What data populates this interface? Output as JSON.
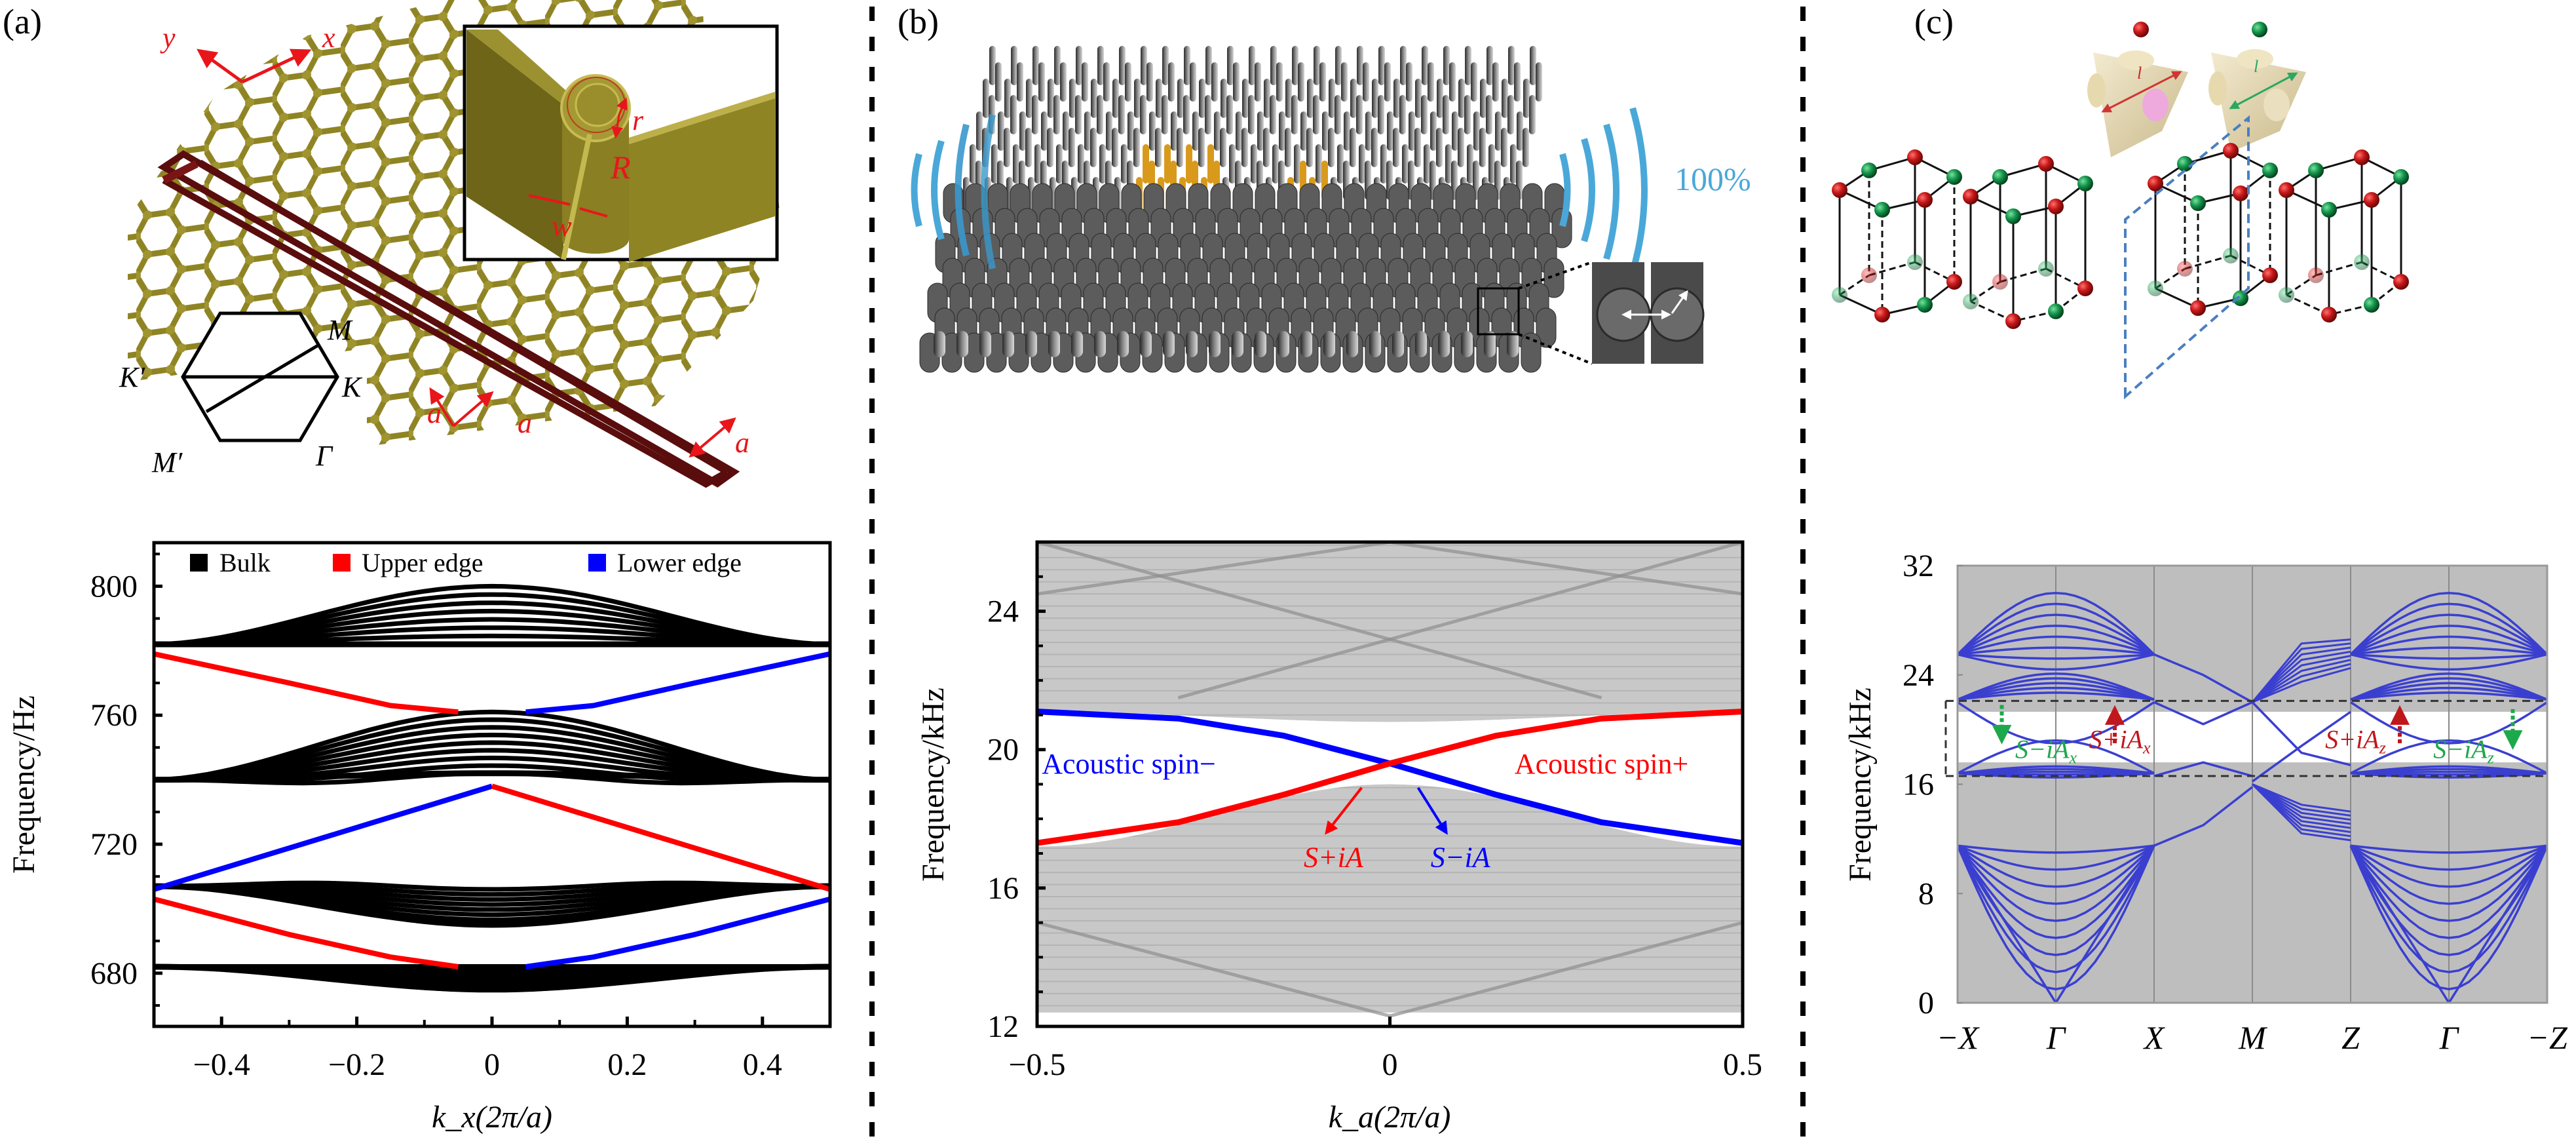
{
  "figure": {
    "panels": [
      {
        "id": "a",
        "label": "(a)",
        "schematic": {
          "axis_labels": {
            "y": "y",
            "x": "x"
          },
          "inset_labels": {
            "r": "r",
            "R": "R",
            "w": "w"
          },
          "lattice_labels": [
            "a",
            "a",
            "a"
          ],
          "brillouin_zone_labels": {
            "M": "M",
            "K_prime": "K′",
            "K": "K",
            "M_prime": "M′",
            "Gamma": "Γ"
          },
          "colors": {
            "lattice": "#8f8424",
            "supercell": "#5a0d0d",
            "annotation": "#e8161b"
          }
        }
      },
      {
        "id": "b",
        "label": "(b)",
        "schematic": {
          "transmission_label": "100%",
          "colors": {
            "rods": "#5a5a5a",
            "highlight_rods": "#d99a1c",
            "wave": "#4aa8d8"
          }
        }
      },
      {
        "id": "c",
        "label": "(c)",
        "schematic": {
          "unit_labels": {
            "red": "l_r",
            "green": "l_g"
          },
          "colors": {
            "red_atom": "#b3141a",
            "green_atom": "#13914a",
            "plane": "#4a7fc0",
            "block": "#e8dcae"
          }
        }
      }
    ]
  },
  "chart_data": [
    {
      "type": "line",
      "panel": "a",
      "title": "",
      "xlabel": "k_x(2π/a)",
      "ylabel": "Frequency/Hz",
      "xlim": [
        -0.5,
        0.5
      ],
      "ylim": [
        663.5,
        813.5
      ],
      "xticks": [
        -0.4,
        -0.2,
        0,
        0.2,
        0.4
      ],
      "xtick_labels": [
        "−0.4",
        "−0.2",
        "0",
        "0.2",
        "0.4"
      ],
      "yticks": [
        680,
        720,
        760,
        800
      ],
      "ytick_labels": [
        "680",
        "720",
        "760",
        "800"
      ],
      "legend": {
        "placement": "top",
        "entries": [
          {
            "name": "Bulk",
            "color": "#000000"
          },
          {
            "name": "Upper edge",
            "color": "#ff0000"
          },
          {
            "name": "Lower edge",
            "color": "#0000ff"
          }
        ]
      },
      "bulk_bands": [
        {
          "edge_k": 0.5,
          "edge_f": 782,
          "center_f_low": 782,
          "center_f_high": 800,
          "lines": 8
        },
        {
          "edge_k": 0.5,
          "edge_f": 740,
          "center_f_low": 742,
          "center_f_high": 761,
          "lines": 9,
          "dip_f": 736
        },
        {
          "edge_k": 0.5,
          "edge_f": 707,
          "center_f_low": 695,
          "center_f_high": 706,
          "lines": 8,
          "bump_f": 710
        },
        {
          "edge_k": 0.5,
          "edge_f": 682,
          "center_f_low": 675,
          "center_f_high": 682,
          "lines": 6
        }
      ],
      "series": [
        {
          "name": "Upper edge",
          "color": "#ff0000",
          "points": [
            [
              -0.5,
              779
            ],
            [
              -0.3,
              770
            ],
            [
              -0.15,
              763
            ],
            [
              -0.05,
              761
            ]
          ]
        },
        {
          "name": "Lower edge",
          "color": "#0000ff",
          "points": [
            [
              0.05,
              761
            ],
            [
              0.15,
              763
            ],
            [
              0.3,
              770
            ],
            [
              0.5,
              779
            ]
          ]
        },
        {
          "name": "Lower edge",
          "color": "#0000ff",
          "points": [
            [
              -0.5,
              706
            ],
            [
              -0.25,
              722
            ],
            [
              0,
              738
            ]
          ]
        },
        {
          "name": "Upper edge",
          "color": "#ff0000",
          "points": [
            [
              0,
              738
            ],
            [
              0.25,
              722
            ],
            [
              0.5,
              706
            ]
          ]
        },
        {
          "name": "Upper edge",
          "color": "#ff0000",
          "points": [
            [
              -0.5,
              703
            ],
            [
              -0.3,
              692
            ],
            [
              -0.15,
              685
            ],
            [
              -0.05,
              682
            ]
          ]
        },
        {
          "name": "Lower edge",
          "color": "#0000ff",
          "points": [
            [
              0.05,
              682
            ],
            [
              0.15,
              685
            ],
            [
              0.3,
              692
            ],
            [
              0.5,
              703
            ]
          ]
        }
      ]
    },
    {
      "type": "line",
      "panel": "b",
      "title": "",
      "xlabel": "k_a(2π/a)",
      "ylabel": "Frequency/kHz",
      "xlim": [
        -0.5,
        0.5
      ],
      "ylim": [
        12,
        26
      ],
      "xticks": [
        -0.5,
        0,
        0.5
      ],
      "xtick_labels": [
        "−0.5",
        "0",
        "0.5"
      ],
      "yticks": [
        12,
        16,
        20,
        24
      ],
      "ytick_labels": [
        "12",
        "16",
        "20",
        "24"
      ],
      "bulk_region_color": "#c8c8c8",
      "bulk_upper": {
        "edge_f": 21.1,
        "center_f": 20.8,
        "top_f": 26
      },
      "bulk_lower": {
        "edge_f": 17.2,
        "center_f": 19.0,
        "bottom_edge_f": 12.4,
        "bottom_center_f": 12.3
      },
      "series": [
        {
          "name": "Acoustic spin−",
          "color": "#0000ff",
          "points": [
            [
              -0.5,
              21.1
            ],
            [
              -0.3,
              20.9
            ],
            [
              -0.15,
              20.4
            ],
            [
              0,
              19.6
            ],
            [
              0.15,
              18.7
            ],
            [
              0.3,
              17.9
            ],
            [
              0.5,
              17.3
            ]
          ]
        },
        {
          "name": "Acoustic spin+",
          "color": "#ff0000",
          "points": [
            [
              -0.5,
              17.3
            ],
            [
              -0.3,
              17.9
            ],
            [
              -0.15,
              18.7
            ],
            [
              0,
              19.6
            ],
            [
              0.15,
              20.4
            ],
            [
              0.3,
              20.9
            ],
            [
              0.5,
              21.1
            ]
          ]
        }
      ],
      "annotations": [
        {
          "text": "Acoustic spin−",
          "color": "#0000ff",
          "x": -0.37,
          "y": 19.6
        },
        {
          "text": "Acoustic spin+",
          "color": "#ff0000",
          "x": 0.3,
          "y": 19.6
        },
        {
          "text": "S+iA",
          "color": "#ff0000",
          "x": -0.08,
          "y": 16.9,
          "arrow_from": [
            -0.04,
            18.9
          ],
          "arrow_to": [
            -0.09,
            17.6
          ]
        },
        {
          "text": "S−iA",
          "color": "#0000ff",
          "x": 0.1,
          "y": 16.9,
          "arrow_from": [
            0.04,
            18.9
          ],
          "arrow_to": [
            0.08,
            17.6
          ]
        }
      ]
    },
    {
      "type": "line",
      "panel": "c",
      "title": "",
      "xlabel": "",
      "ylabel": "Frequency/kHz",
      "x_categories": [
        "−X",
        "Γ",
        "X",
        "M",
        "Z",
        "Γ",
        "−Z"
      ],
      "ylim": [
        0,
        32
      ],
      "yticks": [
        0,
        8,
        16,
        24,
        32
      ],
      "ytick_labels": [
        "0",
        "8",
        "16",
        "24",
        "32"
      ],
      "bulk_region_color": "#bebebe",
      "gap": [
        17.6,
        21.3
      ],
      "dashed_box": [
        16.6,
        22.1
      ],
      "band_color": "#3a3fd0",
      "annotations": [
        {
          "text": "S−iA",
          "sub": "x",
          "color": "#1ea84c",
          "segment": 0.9,
          "y": 18.6
        },
        {
          "text": "S+iA",
          "sub": "x",
          "color": "#c0171c",
          "segment": 1.65,
          "y": 19.3
        },
        {
          "text": "S+iA",
          "sub": "z",
          "color": "#c0171c",
          "segment": 4.05,
          "y": 19.3
        },
        {
          "text": "S−iA",
          "sub": "z",
          "color": "#1ea84c",
          "segment": 5.15,
          "y": 18.6
        }
      ]
    }
  ]
}
